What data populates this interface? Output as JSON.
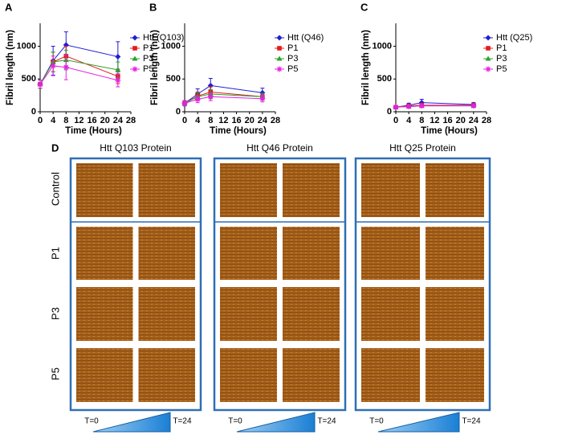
{
  "chart_data": [
    {
      "type": "line",
      "panel": "A",
      "ylabel": "Fibril length (nm)",
      "xlabel": "Time (Hours)",
      "x": [
        0,
        4,
        8,
        24
      ],
      "xlim": [
        0,
        28
      ],
      "xticks": [
        0,
        4,
        8,
        12,
        16,
        20,
        24,
        28
      ],
      "ylim": [
        0,
        1350
      ],
      "yticks": [
        0,
        500,
        1000
      ],
      "series": [
        {
          "name": "Htt (Q103)",
          "color": "#1f1fd6",
          "values": [
            420,
            780,
            1020,
            840
          ],
          "errors": [
            60,
            220,
            200,
            230
          ]
        },
        {
          "name": "P1",
          "color": "#e41a1c",
          "values": [
            420,
            760,
            850,
            540
          ],
          "errors": [
            60,
            150,
            150,
            110
          ]
        },
        {
          "name": "P3",
          "color": "#2ca02c",
          "values": [
            420,
            760,
            790,
            640
          ],
          "errors": [
            60,
            150,
            150,
            120
          ]
        },
        {
          "name": "P5",
          "color": "#e61ee6",
          "values": [
            420,
            700,
            680,
            480
          ],
          "errors": [
            60,
            150,
            190,
            100
          ]
        }
      ]
    },
    {
      "type": "line",
      "panel": "B",
      "ylabel": "Fibril length (nm)",
      "xlabel": "Time (Hours)",
      "x": [
        0,
        4,
        8,
        24
      ],
      "xlim": [
        0,
        28
      ],
      "xticks": [
        0,
        4,
        8,
        12,
        16,
        20,
        24,
        28
      ],
      "ylim": [
        0,
        1350
      ],
      "yticks": [
        0,
        500,
        1000
      ],
      "series": [
        {
          "name": "Htt (Q46)",
          "color": "#1f1fd6",
          "values": [
            130,
            270,
            400,
            290
          ],
          "errors": [
            40,
            80,
            110,
            70
          ]
        },
        {
          "name": "P1",
          "color": "#e41a1c",
          "values": [
            130,
            240,
            300,
            230
          ],
          "errors": [
            40,
            60,
            80,
            50
          ]
        },
        {
          "name": "P3",
          "color": "#2ca02c",
          "values": [
            130,
            230,
            270,
            230
          ],
          "errors": [
            40,
            60,
            70,
            50
          ]
        },
        {
          "name": "P5",
          "color": "#e61ee6",
          "values": [
            130,
            190,
            230,
            200
          ],
          "errors": [
            40,
            50,
            60,
            50
          ]
        }
      ]
    },
    {
      "type": "line",
      "panel": "C",
      "ylabel": "Fibril length (nm)",
      "xlabel": "Time (Hours)",
      "x": [
        0,
        4,
        8,
        24
      ],
      "xlim": [
        0,
        28
      ],
      "xticks": [
        0,
        4,
        8,
        12,
        16,
        20,
        24,
        28
      ],
      "ylim": [
        0,
        1350
      ],
      "yticks": [
        0,
        500,
        1000
      ],
      "series": [
        {
          "name": "Htt (Q25)",
          "color": "#1f1fd6",
          "values": [
            70,
            100,
            140,
            110
          ],
          "errors": [
            20,
            30,
            50,
            30
          ]
        },
        {
          "name": "P1",
          "color": "#e41a1c",
          "values": [
            70,
            90,
            100,
            100
          ],
          "errors": [
            20,
            20,
            30,
            20
          ]
        },
        {
          "name": "P3",
          "color": "#2ca02c",
          "values": [
            70,
            80,
            90,
            90
          ],
          "errors": [
            20,
            20,
            20,
            20
          ]
        },
        {
          "name": "P5",
          "color": "#e61ee6",
          "values": [
            70,
            80,
            90,
            90
          ],
          "errors": [
            20,
            20,
            20,
            20
          ]
        }
      ]
    }
  ],
  "panel_d": {
    "label": "D",
    "columns": [
      "Htt Q103 Protein",
      "Htt Q46 Protein",
      "Htt Q25 Protein"
    ],
    "rows": [
      "Control",
      "P1",
      "P3",
      "P5"
    ],
    "time_start": "T=0",
    "time_end": "T=24"
  }
}
